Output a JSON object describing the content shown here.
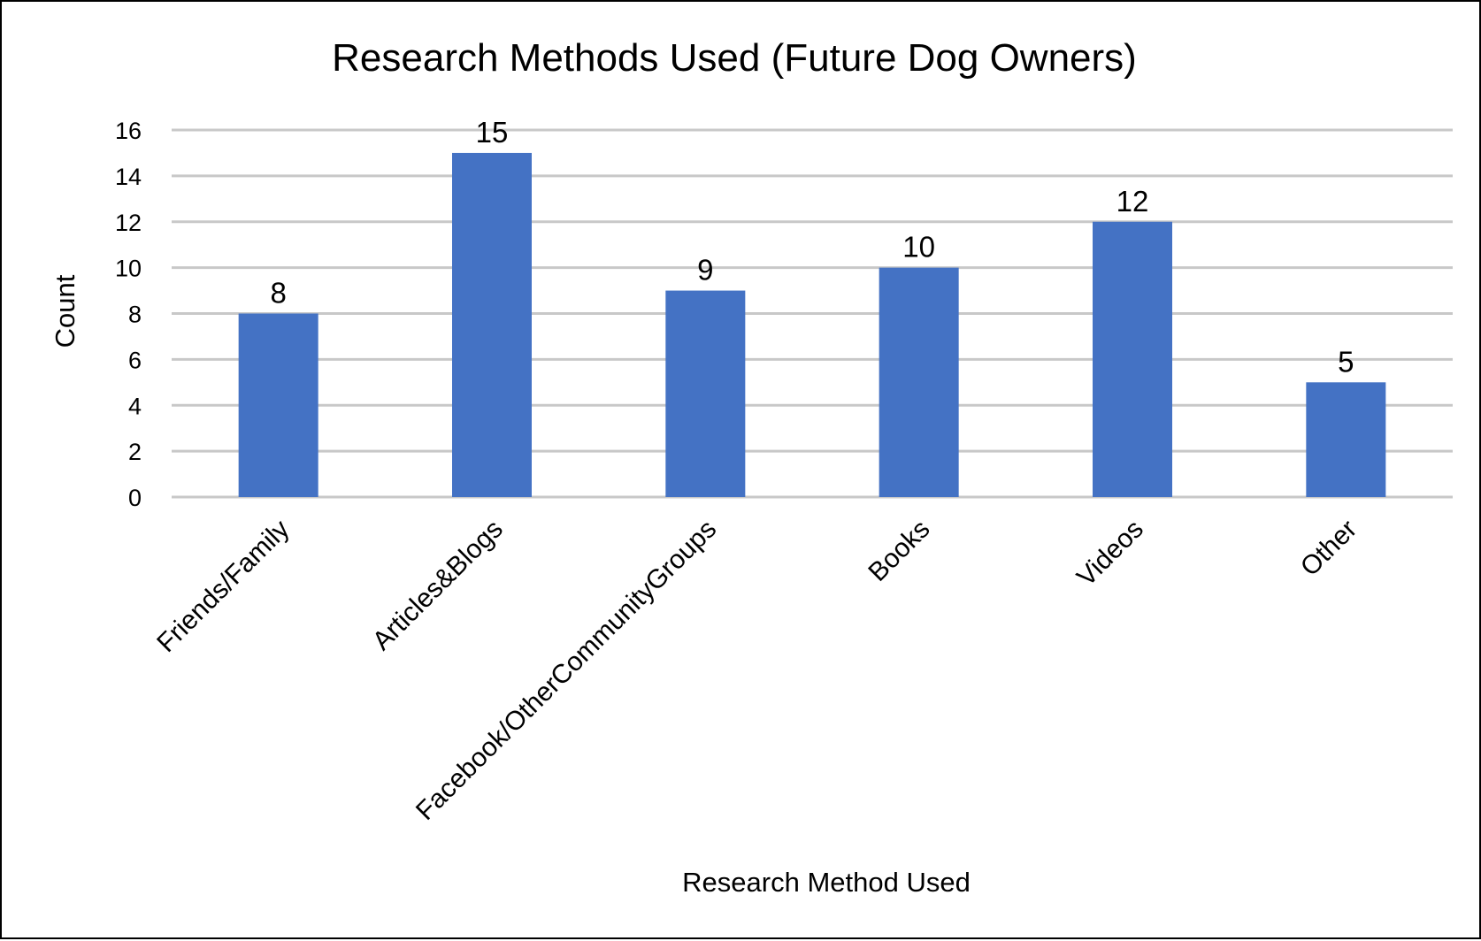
{
  "chart_data": {
    "type": "bar",
    "title": "Research Methods Used (Future Dog Owners)",
    "xlabel": "Research Method Used",
    "ylabel": "Count",
    "categories": [
      "Friends/Family",
      "Articles&Blogs",
      "Facebook/OtherCommunityGroups",
      "Books",
      "Videos",
      "Other"
    ],
    "values": [
      8,
      15,
      9,
      10,
      12,
      5
    ],
    "value_labels": [
      "8",
      "15",
      "9",
      "10",
      "12",
      "5"
    ],
    "ylim": [
      0,
      16
    ],
    "yticks": [
      "0",
      "2",
      "4",
      "6",
      "8",
      "10",
      "12",
      "14",
      "16"
    ],
    "grid": true,
    "legend": "none",
    "bar_color": "#4472c4",
    "grid_color": "#c8c8c8"
  }
}
